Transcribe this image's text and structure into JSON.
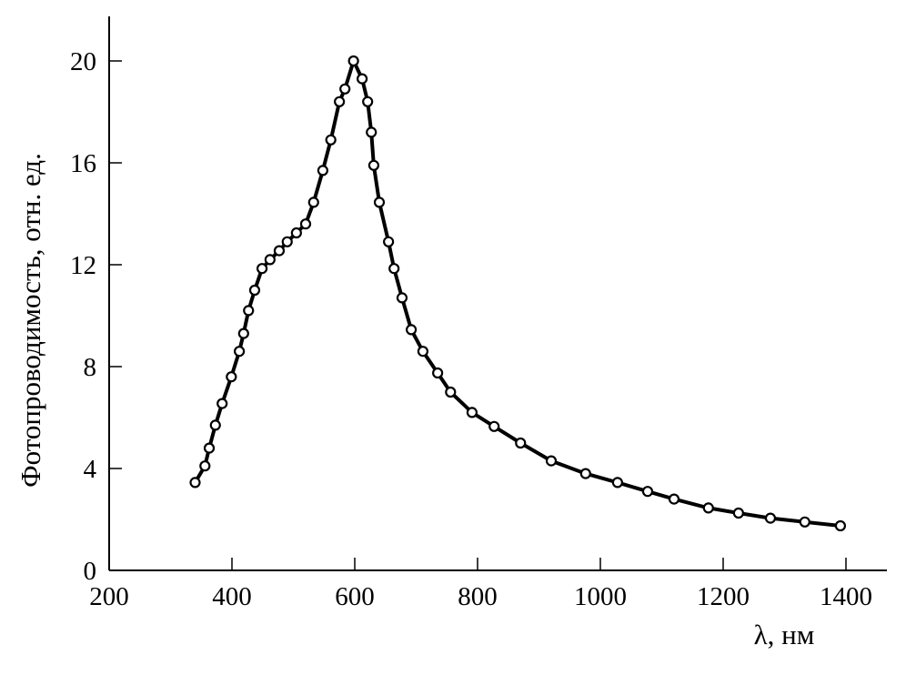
{
  "chart_data": {
    "type": "line",
    "title": "",
    "xlabel": "λ, нм",
    "ylabel": "Фотопроводимость, отн. ед.",
    "xlim": [
      200,
      1470
    ],
    "ylim": [
      0,
      21.5
    ],
    "xticks": [
      200,
      400,
      600,
      800,
      1000,
      1200,
      1400
    ],
    "yticks": [
      0,
      4,
      8,
      12,
      16,
      20
    ],
    "grid": false,
    "marker": "open-circle",
    "line_color": "#000000",
    "series": [
      {
        "x": [
          340,
          356,
          363,
          373,
          384,
          399,
          412,
          419,
          427,
          437,
          449,
          462,
          477,
          490,
          505,
          520,
          533,
          548,
          561,
          575,
          584,
          598,
          612,
          621,
          627,
          631,
          640,
          655,
          664,
          677,
          692,
          711,
          735,
          756,
          791,
          827,
          870,
          920,
          976,
          1028,
          1077,
          1120,
          1176,
          1225,
          1277,
          1333,
          1391
        ],
        "y": [
          3.45,
          4.1,
          4.8,
          5.7,
          6.55,
          7.6,
          8.6,
          9.3,
          10.2,
          11.0,
          11.85,
          12.2,
          12.55,
          12.9,
          13.25,
          13.6,
          14.45,
          15.7,
          16.9,
          18.4,
          18.9,
          20.0,
          19.3,
          18.4,
          17.2,
          15.9,
          14.45,
          12.9,
          11.85,
          10.7,
          9.45,
          8.6,
          7.75,
          7.0,
          6.2,
          5.65,
          5.0,
          4.3,
          3.8,
          3.45,
          3.1,
          2.8,
          2.45,
          2.25,
          2.05,
          1.9,
          1.75
        ]
      }
    ]
  }
}
